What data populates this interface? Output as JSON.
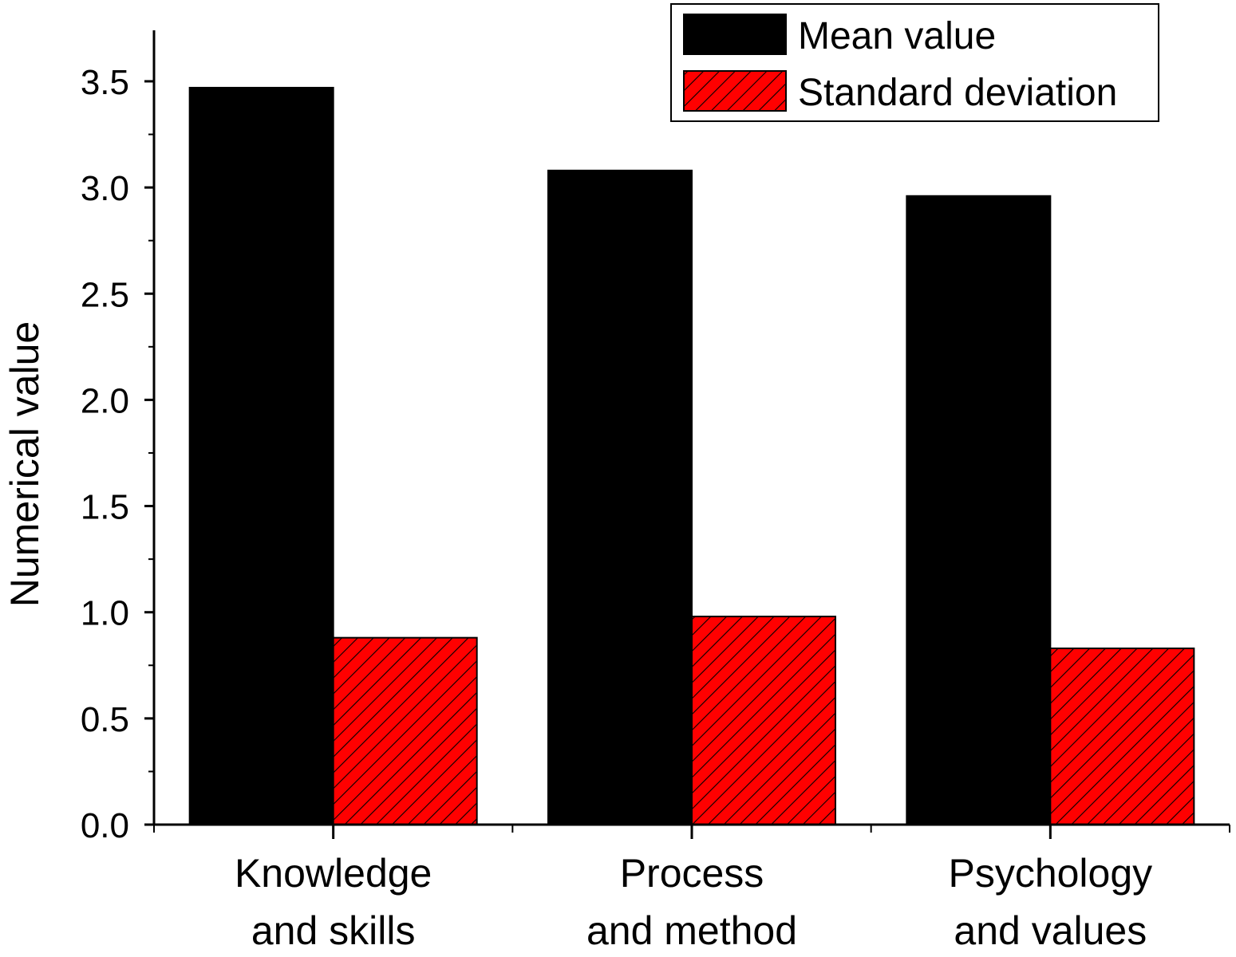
{
  "chart_data": {
    "type": "bar",
    "title": "",
    "xlabel": "",
    "ylabel": "Numerical value",
    "ylim": [
      0,
      3.75
    ],
    "yticks": [
      "0.0",
      "0.5",
      "1.0",
      "1.5",
      "2.0",
      "2.5",
      "3.0",
      "3.5"
    ],
    "categories": [
      [
        "Knowledge",
        "and skills"
      ],
      [
        "Process",
        "and method"
      ],
      [
        "Psychology",
        "and values"
      ]
    ],
    "series": [
      {
        "name": "Mean value",
        "values": [
          3.47,
          3.08,
          2.96
        ],
        "color": "#000000",
        "pattern": "solid"
      },
      {
        "name": "Standard deviation",
        "values": [
          0.88,
          0.98,
          0.83
        ],
        "color": "#ff0000",
        "pattern": "diagonal-hatch"
      }
    ],
    "grid": false,
    "legend_position": "top-right"
  }
}
